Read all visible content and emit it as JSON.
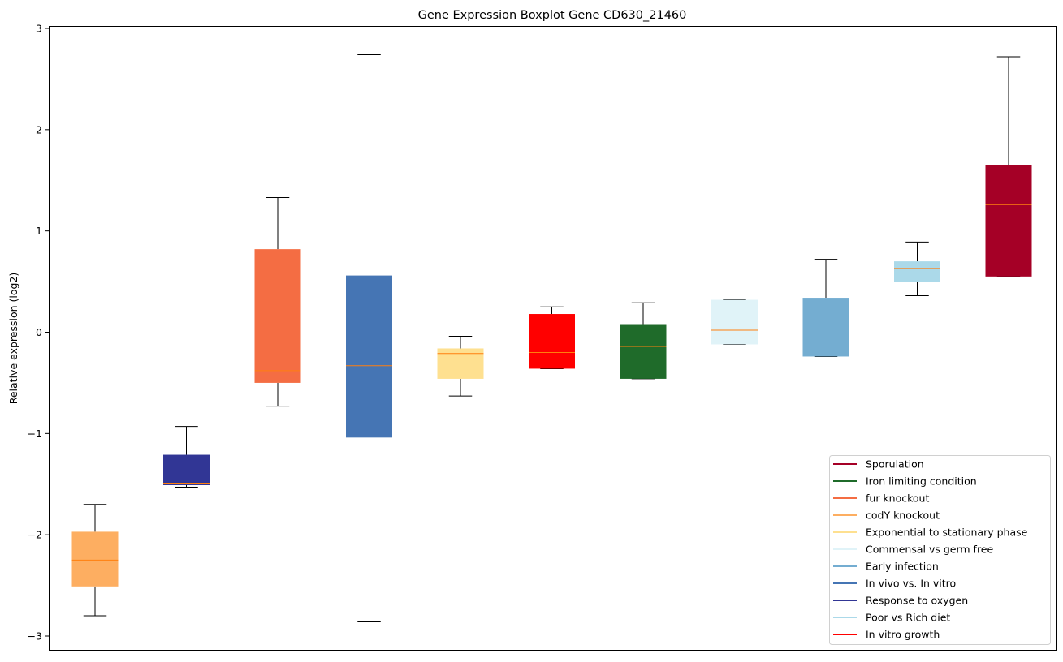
{
  "chart_data": {
    "type": "boxplot",
    "title": "Gene Expression Boxplot Gene CD630_21460",
    "xlabel": "",
    "ylabel": "Relative expression (log2)",
    "ylim": [
      -3.15,
      3.03
    ],
    "yticks": [
      -3,
      -2,
      -1,
      0,
      1,
      2,
      3
    ],
    "ytick_labels": [
      "−3",
      "−2",
      "−1",
      "0",
      "1",
      "2",
      "3"
    ],
    "grid": false,
    "legend_position": "bottom-right",
    "median_color": "#ff7f0e",
    "boxes": [
      {
        "name": "codY knockout",
        "color": "#fdae61",
        "whislo": -2.8,
        "q1": -2.51,
        "med": -2.25,
        "q3": -1.97,
        "whishi": -1.7
      },
      {
        "name": "Response to oxygen",
        "color": "#313695",
        "whislo": -1.53,
        "q1": -1.51,
        "med": -1.49,
        "q3": -1.21,
        "whishi": -0.93
      },
      {
        "name": "fur knockout",
        "color": "#f46d43",
        "whislo": -0.73,
        "q1": -0.5,
        "med": -0.38,
        "q3": 0.82,
        "whishi": 1.33
      },
      {
        "name": "In vivo vs. In vitro",
        "color": "#4575b4",
        "whislo": -2.86,
        "q1": -1.04,
        "med": -0.33,
        "q3": 0.56,
        "whishi": 2.74
      },
      {
        "name": "Exponential to stationary phase",
        "color": "#fee090",
        "whislo": -0.63,
        "q1": -0.46,
        "med": -0.21,
        "q3": -0.16,
        "whishi": -0.04
      },
      {
        "name": "In vitro growth",
        "color": "#ff0000",
        "whislo": -0.36,
        "q1": -0.36,
        "med": -0.2,
        "q3": 0.18,
        "whishi": 0.25
      },
      {
        "name": "Iron limiting condition",
        "color": "#1f6b2a",
        "whislo": -0.46,
        "q1": -0.46,
        "med": -0.14,
        "q3": 0.08,
        "whishi": 0.29
      },
      {
        "name": "Commensal vs germ free",
        "color": "#e0f3f8",
        "whislo": -0.12,
        "q1": -0.12,
        "med": 0.02,
        "q3": 0.32,
        "whishi": 0.32
      },
      {
        "name": "Early infection",
        "color": "#74add1",
        "whislo": -0.24,
        "q1": -0.24,
        "med": 0.2,
        "q3": 0.34,
        "whishi": 0.72
      },
      {
        "name": "Poor vs Rich diet",
        "color": "#abd9e9",
        "whislo": 0.36,
        "q1": 0.5,
        "med": 0.63,
        "q3": 0.7,
        "whishi": 0.89
      },
      {
        "name": "Sporulation",
        "color": "#a50026",
        "whislo": 0.55,
        "q1": 0.55,
        "med": 1.26,
        "q3": 1.65,
        "whishi": 2.72
      }
    ],
    "legend": [
      {
        "label": "Sporulation",
        "color": "#a50026"
      },
      {
        "label": "Iron limiting condition",
        "color": "#1f6b2a"
      },
      {
        "label": "fur knockout",
        "color": "#f46d43"
      },
      {
        "label": "codY knockout",
        "color": "#fdae61"
      },
      {
        "label": "Exponential to stationary phase",
        "color": "#fee090"
      },
      {
        "label": "Commensal vs germ free",
        "color": "#e0f3f8"
      },
      {
        "label": "Early infection",
        "color": "#74add1"
      },
      {
        "label": "In vivo vs. In vitro",
        "color": "#4575b4"
      },
      {
        "label": "Response to oxygen",
        "color": "#313695"
      },
      {
        "label": "Poor vs Rich diet",
        "color": "#abd9e9"
      },
      {
        "label": "In vitro growth",
        "color": "#ff0000"
      }
    ]
  }
}
